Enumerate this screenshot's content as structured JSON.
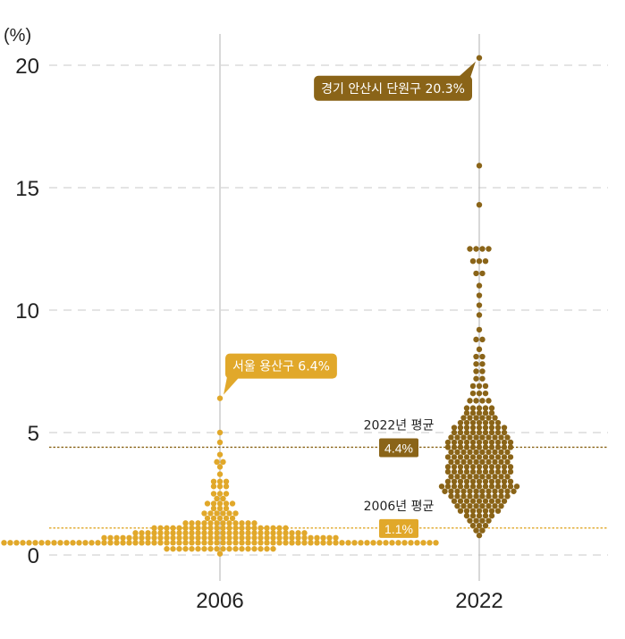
{
  "chart_data": {
    "type": "scatter",
    "subtype": "beeswarm",
    "unit_label": "(%)",
    "categories": [
      "2006",
      "2022"
    ],
    "ylim": [
      0,
      21
    ],
    "yticks": [
      0,
      5,
      10,
      15,
      20
    ],
    "grid": true,
    "colors": {
      "2006": "#e1a82a",
      "2022": "#8a6418",
      "grid": "#d4d4d4",
      "axis": "#bdbdbd"
    },
    "series": [
      {
        "name": "2006",
        "color": "#e1a82a",
        "bins": [
          {
            "y": 0.05,
            "count": 1
          },
          {
            "y": 0.25,
            "count": 18
          },
          {
            "y": 0.5,
            "count": 70
          },
          {
            "y": 0.7,
            "count": 38
          },
          {
            "y": 0.9,
            "count": 28
          },
          {
            "y": 1.1,
            "count": 22
          },
          {
            "y": 1.3,
            "count": 12
          },
          {
            "y": 1.5,
            "count": 5
          },
          {
            "y": 1.7,
            "count": 6
          },
          {
            "y": 1.9,
            "count": 3
          },
          {
            "y": 2.1,
            "count": 5
          },
          {
            "y": 2.3,
            "count": 2
          },
          {
            "y": 2.5,
            "count": 3
          },
          {
            "y": 2.8,
            "count": 3
          },
          {
            "y": 3.0,
            "count": 3
          },
          {
            "y": 3.3,
            "count": 1
          },
          {
            "y": 3.6,
            "count": 1
          },
          {
            "y": 3.8,
            "count": 2
          },
          {
            "y": 4.1,
            "count": 1
          },
          {
            "y": 4.6,
            "count": 1
          },
          {
            "y": 5.0,
            "count": 1
          },
          {
            "y": 6.4,
            "count": 1
          }
        ]
      },
      {
        "name": "2022",
        "color": "#8a6418",
        "bins": [
          {
            "y": 0.8,
            "count": 1
          },
          {
            "y": 1.0,
            "count": 2
          },
          {
            "y": 1.2,
            "count": 3
          },
          {
            "y": 1.4,
            "count": 4
          },
          {
            "y": 1.6,
            "count": 5
          },
          {
            "y": 1.8,
            "count": 7
          },
          {
            "y": 2.0,
            "count": 8
          },
          {
            "y": 2.2,
            "count": 9
          },
          {
            "y": 2.4,
            "count": 10
          },
          {
            "y": 2.6,
            "count": 12
          },
          {
            "y": 2.8,
            "count": 13
          },
          {
            "y": 3.0,
            "count": 11
          },
          {
            "y": 3.2,
            "count": 10
          },
          {
            "y": 3.4,
            "count": 11
          },
          {
            "y": 3.6,
            "count": 11
          },
          {
            "y": 3.8,
            "count": 10
          },
          {
            "y": 4.0,
            "count": 11
          },
          {
            "y": 4.2,
            "count": 10
          },
          {
            "y": 4.4,
            "count": 11
          },
          {
            "y": 4.6,
            "count": 11
          },
          {
            "y": 4.8,
            "count": 10
          },
          {
            "y": 5.0,
            "count": 9
          },
          {
            "y": 5.2,
            "count": 9
          },
          {
            "y": 5.4,
            "count": 7
          },
          {
            "y": 5.6,
            "count": 6
          },
          {
            "y": 5.8,
            "count": 5
          },
          {
            "y": 6.0,
            "count": 5
          },
          {
            "y": 6.3,
            "count": 4
          },
          {
            "y": 6.6,
            "count": 3
          },
          {
            "y": 6.9,
            "count": 3
          },
          {
            "y": 7.2,
            "count": 2
          },
          {
            "y": 7.5,
            "count": 2
          },
          {
            "y": 7.8,
            "count": 2
          },
          {
            "y": 8.1,
            "count": 2
          },
          {
            "y": 8.4,
            "count": 1
          },
          {
            "y": 8.8,
            "count": 2
          },
          {
            "y": 9.2,
            "count": 1
          },
          {
            "y": 9.8,
            "count": 1
          },
          {
            "y": 10.2,
            "count": 1
          },
          {
            "y": 10.6,
            "count": 1
          },
          {
            "y": 11.0,
            "count": 1
          },
          {
            "y": 11.5,
            "count": 2
          },
          {
            "y": 12.0,
            "count": 3
          },
          {
            "y": 12.5,
            "count": 4
          },
          {
            "y": 14.3,
            "count": 1
          },
          {
            "y": 15.9,
            "count": 1
          },
          {
            "y": 20.3,
            "count": 1
          }
        ]
      }
    ],
    "averages": [
      {
        "series": "2006",
        "value": 1.1,
        "title": "2006년 평균",
        "label": "1.1%",
        "color": "#e1a82a"
      },
      {
        "series": "2022",
        "value": 4.4,
        "title": "2022년 평균",
        "label": "4.4%",
        "color": "#8a6418"
      }
    ],
    "annotations": [
      {
        "series": "2006",
        "y": 6.4,
        "text": "서울 용산구 6.4%",
        "color": "#e1a82a"
      },
      {
        "series": "2022",
        "y": 20.3,
        "text": "경기 안산시 단원구 20.3%",
        "color": "#8a6418"
      }
    ]
  }
}
